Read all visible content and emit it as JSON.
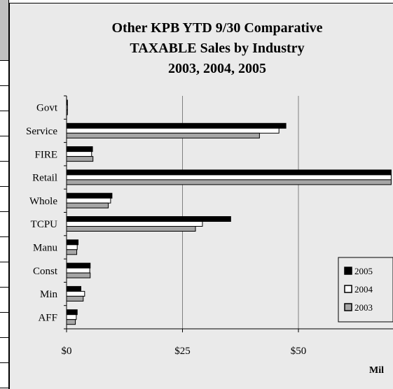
{
  "colors": {
    "series_2005": "#000000",
    "series_2004": "#ffffff",
    "series_2003": "#a6a6a6",
    "chart_background": "#eaeaea",
    "gridline": "#808080"
  },
  "chart_data": {
    "type": "bar",
    "orientation": "horizontal",
    "title_lines": [
      "Other KPB YTD 9/30 Comparative",
      "TAXABLE Sales by Industry",
      "2003, 2004, 2005"
    ],
    "categories": [
      "Govt",
      "Service",
      "FIRE",
      "Retail",
      "Whole",
      "TCPU",
      "Manu",
      "Const",
      "Min",
      "AFF"
    ],
    "series": [
      {
        "name": "2005",
        "values": [
          0.2,
          47.3,
          5.6,
          70,
          9.8,
          35.4,
          2.5,
          5.1,
          3.1,
          2.3
        ]
      },
      {
        "name": "2004",
        "values": [
          0.2,
          45.8,
          5.4,
          70,
          9.5,
          29.3,
          2.3,
          5.0,
          3.9,
          2.1
        ]
      },
      {
        "name": "2003",
        "values": [
          0.2,
          41.6,
          5.7,
          70,
          9.0,
          27.8,
          2.2,
          5.1,
          3.6,
          1.9
        ]
      }
    ],
    "x_ticks": [
      "$0",
      "$25",
      "$50"
    ],
    "x_tick_values": [
      0,
      25,
      50
    ],
    "xlim": [
      0,
      70
    ],
    "xlabel": "Mil",
    "grid": true,
    "legend_position": "bottom-right"
  }
}
